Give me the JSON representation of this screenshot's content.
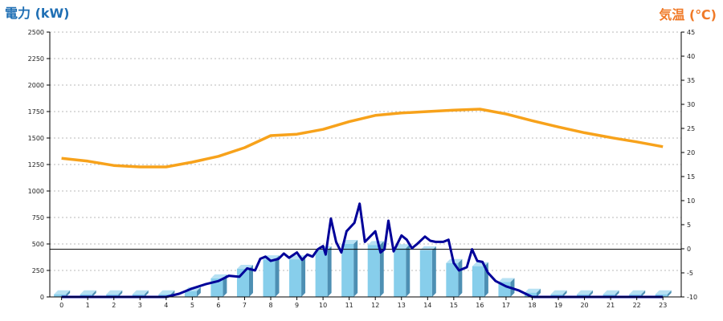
{
  "chart_data": {
    "type": "bar",
    "left_axis_title": "電力 (kW)",
    "right_axis_title": "気温 (℃)",
    "categories": [
      "0",
      "1",
      "2",
      "3",
      "4",
      "5",
      "6",
      "7",
      "8",
      "9",
      "10",
      "11",
      "12",
      "13",
      "14",
      "15",
      "16",
      "17",
      "18",
      "19",
      "20",
      "21",
      "22",
      "23"
    ],
    "y_left": {
      "min": 0,
      "max": 2500,
      "ticks": [
        0,
        250,
        500,
        750,
        1000,
        1250,
        1500,
        1750,
        2000,
        2250,
        2500
      ]
    },
    "y_right": {
      "min": -10,
      "max": 45,
      "ticks": [
        -10,
        -5,
        0,
        5,
        10,
        15,
        20,
        25,
        30,
        35,
        40,
        45
      ]
    },
    "grid": true,
    "reference_line_kw": 450,
    "series": [
      {
        "kind": "bar",
        "axis": "left",
        "color": "#87ceeb",
        "values": [
          25,
          25,
          25,
          25,
          25,
          55,
          175,
          265,
          355,
          355,
          440,
          500,
          490,
          460,
          440,
          320,
          290,
          140,
          40,
          25,
          25,
          25,
          25,
          25
        ]
      },
      {
        "kind": "line",
        "axis": "left",
        "color": "#000099",
        "points": [
          [
            0,
            0
          ],
          [
            1,
            0
          ],
          [
            2,
            0
          ],
          [
            3,
            0
          ],
          [
            4,
            0
          ],
          [
            4.5,
            30
          ],
          [
            5,
            80
          ],
          [
            5.5,
            120
          ],
          [
            6,
            150
          ],
          [
            6.4,
            200
          ],
          [
            6.8,
            190
          ],
          [
            7.1,
            270
          ],
          [
            7.4,
            250
          ],
          [
            7.6,
            360
          ],
          [
            7.8,
            380
          ],
          [
            8,
            340
          ],
          [
            8.3,
            360
          ],
          [
            8.5,
            410
          ],
          [
            8.7,
            370
          ],
          [
            9,
            420
          ],
          [
            9.2,
            350
          ],
          [
            9.4,
            400
          ],
          [
            9.6,
            380
          ],
          [
            9.8,
            450
          ],
          [
            10,
            480
          ],
          [
            10.1,
            400
          ],
          [
            10.3,
            740
          ],
          [
            10.5,
            520
          ],
          [
            10.7,
            420
          ],
          [
            10.9,
            620
          ],
          [
            11.2,
            700
          ],
          [
            11.4,
            880
          ],
          [
            11.6,
            520
          ],
          [
            11.8,
            570
          ],
          [
            12,
            620
          ],
          [
            12.2,
            420
          ],
          [
            12.35,
            450
          ],
          [
            12.5,
            720
          ],
          [
            12.7,
            430
          ],
          [
            13,
            580
          ],
          [
            13.2,
            540
          ],
          [
            13.4,
            460
          ],
          [
            13.6,
            500
          ],
          [
            13.9,
            570
          ],
          [
            14.1,
            530
          ],
          [
            14.3,
            520
          ],
          [
            14.6,
            520
          ],
          [
            14.8,
            540
          ],
          [
            15,
            320
          ],
          [
            15.2,
            250
          ],
          [
            15.5,
            280
          ],
          [
            15.7,
            450
          ],
          [
            15.9,
            340
          ],
          [
            16.1,
            330
          ],
          [
            16.3,
            230
          ],
          [
            16.6,
            150
          ],
          [
            17,
            100
          ],
          [
            17.5,
            60
          ],
          [
            18,
            0
          ],
          [
            19,
            0
          ],
          [
            20,
            0
          ],
          [
            21,
            0
          ],
          [
            22,
            0
          ],
          [
            23,
            0
          ]
        ]
      },
      {
        "kind": "line",
        "axis": "right",
        "color": "#f7a21b",
        "values": [
          18.8,
          18.2,
          17.3,
          17,
          17,
          18,
          19.2,
          21,
          23.5,
          23.8,
          24.8,
          26.4,
          27.7,
          28.2,
          28.5,
          28.8,
          29,
          28,
          26.6,
          25.3,
          24.1,
          23.1,
          22.2,
          21.2
        ]
      }
    ]
  }
}
